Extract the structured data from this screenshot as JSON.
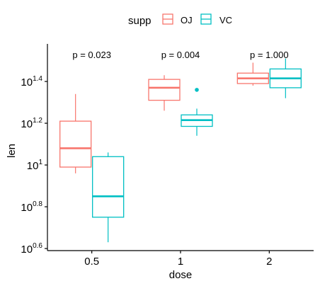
{
  "chart_data": {
    "type": "boxplot",
    "xlabel": "dose",
    "ylabel": "len",
    "categories": [
      "0.5",
      "1",
      "2"
    ],
    "legend": {
      "title": "supp",
      "position": "top",
      "entries": [
        "OJ",
        "VC"
      ]
    },
    "y_axis": {
      "scale": "log10",
      "exponent_range": [
        0.59,
        1.58
      ],
      "tick_base": "10",
      "tick_exponents": [
        "0.6",
        "0.8",
        "1",
        "1.2",
        "1.4"
      ],
      "tick_values": [
        0.6,
        0.8,
        1.0,
        1.2,
        1.4
      ]
    },
    "grid": false,
    "annotations": [
      {
        "category": "0.5",
        "text": "p = 0.023"
      },
      {
        "category": "1",
        "text": "p = 0.004"
      },
      {
        "category": "2",
        "text": "p = 1.000"
      }
    ],
    "colors": {
      "OJ": "#F8766D",
      "VC": "#00BFC4"
    },
    "series": [
      {
        "name": "OJ",
        "boxes": [
          {
            "category": "0.5",
            "whisker_low": 0.96,
            "q1": 0.99,
            "median": 1.08,
            "q3": 1.21,
            "whisker_high": 1.34,
            "outliers": []
          },
          {
            "category": "1",
            "whisker_low": 1.26,
            "q1": 1.31,
            "median": 1.37,
            "q3": 1.41,
            "whisker_high": 1.43,
            "outliers": []
          },
          {
            "category": "2",
            "whisker_low": 1.38,
            "q1": 1.39,
            "median": 1.415,
            "q3": 1.44,
            "whisker_high": 1.49,
            "outliers": []
          }
        ]
      },
      {
        "name": "VC",
        "boxes": [
          {
            "category": "0.5",
            "whisker_low": 0.63,
            "q1": 0.75,
            "median": 0.85,
            "q3": 1.04,
            "whisker_high": 1.06,
            "outliers": []
          },
          {
            "category": "1",
            "whisker_low": 1.14,
            "q1": 1.185,
            "median": 1.215,
            "q3": 1.24,
            "whisker_high": 1.27,
            "outliers": [
              1.36
            ]
          },
          {
            "category": "2",
            "whisker_low": 1.32,
            "q1": 1.37,
            "median": 1.415,
            "q3": 1.46,
            "whisker_high": 1.51,
            "outliers": []
          }
        ]
      }
    ]
  }
}
